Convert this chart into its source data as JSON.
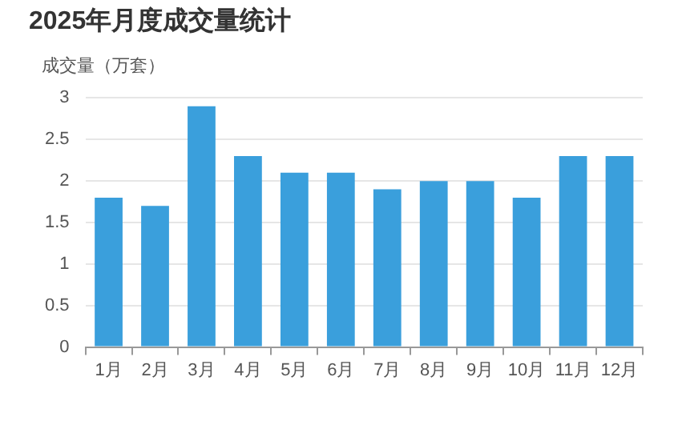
{
  "chart_data": {
    "type": "bar",
    "title": "2025年月度成交量统计",
    "ylabel": "成交量（万套）",
    "categories": [
      "1月",
      "2月",
      "3月",
      "4月",
      "5月",
      "6月",
      "7月",
      "8月",
      "9月",
      "10月",
      "11月",
      "12月"
    ],
    "values": [
      1.8,
      1.7,
      2.9,
      2.3,
      2.1,
      2.1,
      1.9,
      2.0,
      2.0,
      1.8,
      2.3,
      2.3
    ],
    "color": "#3a9fdc",
    "ylim": [
      0,
      3
    ],
    "yticks": [
      0,
      0.5,
      1,
      1.5,
      2,
      2.5,
      3
    ],
    "grid": "y",
    "legend": false
  }
}
